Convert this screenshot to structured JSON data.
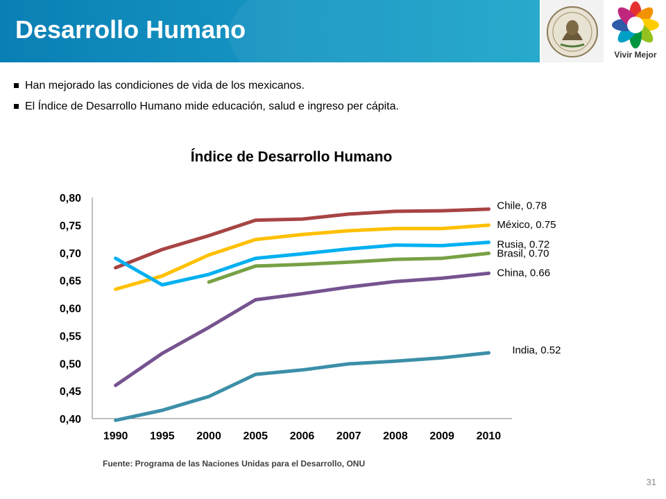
{
  "header": {
    "title": "Desarrollo Humano"
  },
  "logos": {
    "vivir_mejor_text": "Vivir Mejor"
  },
  "bullets": [
    "Han mejorado las condiciones de vida de los mexicanos.",
    "El Índice de Desarrollo Humano mide educación, salud e ingreso per cápita."
  ],
  "chart_data": {
    "type": "line",
    "title": "Índice de Desarrollo Humano",
    "xlabel": "",
    "ylabel": "",
    "categories": [
      "1990",
      "1995",
      "2000",
      "2005",
      "2006",
      "2007",
      "2008",
      "2009",
      "2010"
    ],
    "ylim": [
      0.4,
      0.8
    ],
    "yticks": [
      "0,40",
      "0,45",
      "0,50",
      "0,55",
      "0,60",
      "0,65",
      "0,70",
      "0,75",
      "0,80"
    ],
    "grid": false,
    "legend": "end-of-line labels",
    "series": [
      {
        "name": "Chile",
        "end_label": "Chile, 0.78",
        "color": "#a84444",
        "values": [
          0.673,
          0.706,
          0.731,
          0.759,
          0.761,
          0.77,
          0.775,
          0.776,
          0.779
        ]
      },
      {
        "name": "México",
        "end_label": "México, 0.75",
        "color": "#ffc000",
        "values": [
          0.634,
          0.658,
          0.696,
          0.724,
          0.733,
          0.74,
          0.744,
          0.744,
          0.75
        ]
      },
      {
        "name": "Rusia",
        "end_label": "Rusia, 0.72",
        "color": "#00b0f0",
        "values": [
          0.69,
          0.642,
          0.661,
          0.69,
          0.698,
          0.707,
          0.714,
          0.713,
          0.719
        ]
      },
      {
        "name": "Brasil",
        "end_label": "Brasil, 0.70",
        "color": "#77a145",
        "values": [
          null,
          null,
          0.647,
          0.676,
          0.679,
          0.683,
          0.688,
          0.69,
          0.699
        ]
      },
      {
        "name": "China",
        "end_label": "China, 0.66",
        "color": "#76538f",
        "values": [
          0.46,
          0.518,
          0.565,
          0.615,
          0.626,
          0.638,
          0.648,
          0.654,
          0.663
        ]
      },
      {
        "name": "India",
        "end_label": "India, 0.52",
        "color": "#3c8fa8",
        "values": [
          0.397,
          0.415,
          0.44,
          0.48,
          0.488,
          0.499,
          0.504,
          0.51,
          0.519
        ]
      }
    ]
  },
  "source": "Fuente: Programa de las Naciones Unidas para el Desarrollo, ONU",
  "page_number": "31"
}
